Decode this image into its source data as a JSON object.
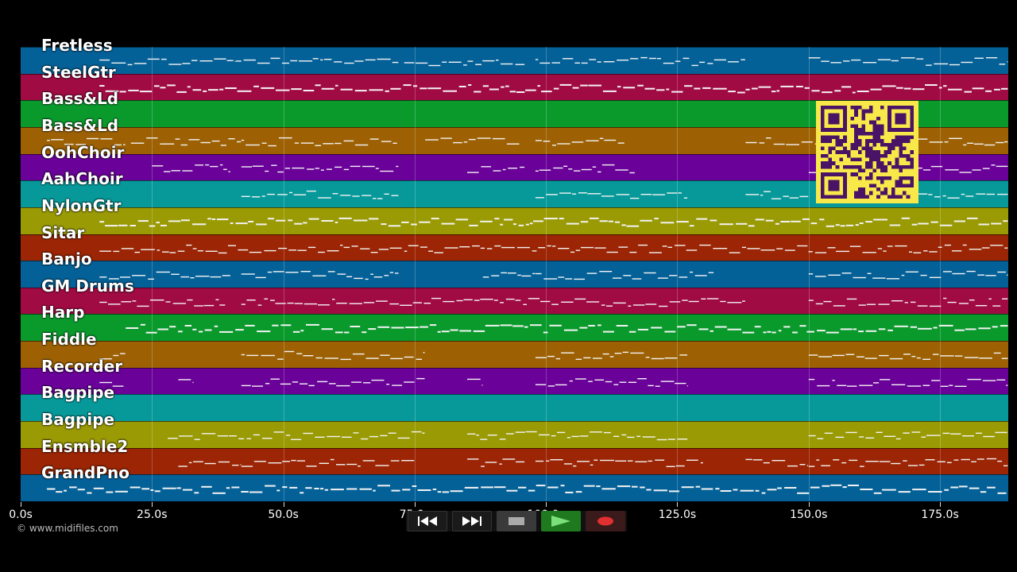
{
  "colors": {
    "background": "#000000",
    "note": "#f2f2f2",
    "qr_bg": "#f8e84a",
    "qr_fg": "#4a1466",
    "lanes": [
      "#046198",
      "#a10b44",
      "#0a9a2c",
      "#9d6104",
      "#6a0199",
      "#07999a",
      "#9a9a05",
      "#9b2504"
    ]
  },
  "duration_s": 188,
  "tracks": [
    {
      "label": "Fretless",
      "color": "#046198"
    },
    {
      "label": "SteelGtr",
      "color": "#a10b44"
    },
    {
      "label": "Bass&Ld",
      "color": "#0a9a2c"
    },
    {
      "label": "Bass&Ld",
      "color": "#9d6104"
    },
    {
      "label": "OohChoir",
      "color": "#6a0199"
    },
    {
      "label": "AahChoir",
      "color": "#07999a"
    },
    {
      "label": "NylonGtr",
      "color": "#9a9a05"
    },
    {
      "label": "Sitar",
      "color": "#9b2504"
    },
    {
      "label": "Banjo",
      "color": "#046198"
    },
    {
      "label": "GM Drums",
      "color": "#a10b44"
    },
    {
      "label": "Harp",
      "color": "#0a9a2c"
    },
    {
      "label": "Fiddle",
      "color": "#9d6104"
    },
    {
      "label": "Recorder",
      "color": "#6a0199"
    },
    {
      "label": "Bagpipe",
      "color": "#07999a"
    },
    {
      "label": "Bagpipe",
      "color": "#9a9a05"
    },
    {
      "label": "Ensmble2",
      "color": "#9b2504"
    },
    {
      "label": "GrandPno",
      "color": "#046198"
    }
  ],
  "time_axis": {
    "ticks_s": [
      0,
      25,
      50,
      75,
      100,
      125,
      150,
      175
    ],
    "tick_labels": [
      "0.0s",
      "25.0s",
      "50.0s",
      "75.0s",
      "100.0s",
      "125.0s",
      "150.0s",
      "175.0s"
    ]
  },
  "copyright": "© www.midifiles.com",
  "transport": {
    "rewind_icon": "rewind-icon",
    "fast_forward_icon": "fast-forward-icon",
    "stop_icon": "stop-icon",
    "play_icon": "play-icon",
    "record_icon": "record-icon"
  },
  "qr_icon": "qr-code-icon"
}
